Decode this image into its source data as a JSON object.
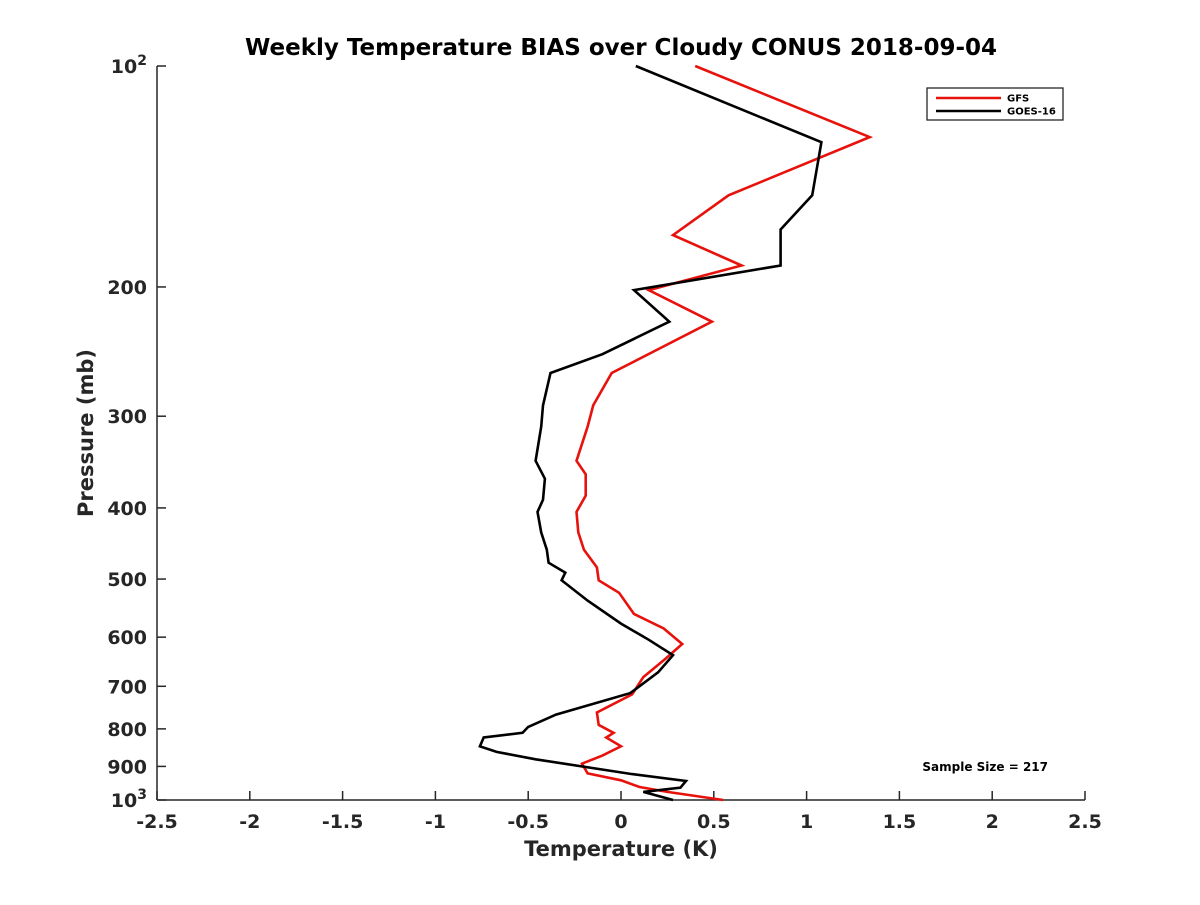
{
  "chart_data": {
    "type": "line",
    "title": "Weekly Temperature BIAS over Cloudy CONUS 2018-09-04",
    "xlabel": "Temperature (K)",
    "ylabel": "Pressure (mb)",
    "xlim": [
      -2.5,
      2.5
    ],
    "ylim": [
      100,
      1000
    ],
    "y_scale": "log",
    "y_reversed": true,
    "x_ticks": [
      -2.5,
      -2,
      -1.5,
      -1,
      -0.5,
      0,
      0.5,
      1,
      1.5,
      2,
      2.5
    ],
    "x_tick_labels": [
      "-2.5",
      "-2",
      "-1.5",
      "-1",
      "-0.5",
      "0",
      "0.5",
      "1",
      "1.5",
      "2",
      "2.5"
    ],
    "y_ticks": [
      100,
      200,
      300,
      400,
      500,
      600,
      700,
      800,
      900,
      1000
    ],
    "y_tick_labels": [
      {
        "base": "10",
        "exp": "2"
      },
      {
        "base": "200"
      },
      {
        "base": "300"
      },
      {
        "base": "400"
      },
      {
        "base": "500"
      },
      {
        "base": "600"
      },
      {
        "base": "700"
      },
      {
        "base": "800"
      },
      {
        "base": "900"
      },
      {
        "base": "10",
        "exp": "3"
      }
    ],
    "grid": false,
    "legend_position": "top-right",
    "annotation": "Sample Size = 217",
    "series": [
      {
        "name": "GFS",
        "color": "#e8120c",
        "points": [
          [
            0.4,
            100
          ],
          [
            1.34,
            125
          ],
          [
            0.58,
            150
          ],
          [
            0.28,
            170
          ],
          [
            0.65,
            187
          ],
          [
            0.15,
            202
          ],
          [
            0.49,
            223
          ],
          [
            -0.05,
            262
          ],
          [
            -0.15,
            290
          ],
          [
            -0.18,
            310
          ],
          [
            -0.24,
            345
          ],
          [
            -0.19,
            360
          ],
          [
            -0.19,
            385
          ],
          [
            -0.24,
            405
          ],
          [
            -0.23,
            432
          ],
          [
            -0.2,
            456
          ],
          [
            -0.13,
            482
          ],
          [
            -0.12,
            502
          ],
          [
            -0.01,
            522
          ],
          [
            0.07,
            558
          ],
          [
            0.23,
            584
          ],
          [
            0.33,
            613
          ],
          [
            0.24,
            642
          ],
          [
            0.12,
            680
          ],
          [
            0.06,
            718
          ],
          [
            -0.13,
            760
          ],
          [
            -0.12,
            790
          ],
          [
            -0.04,
            810
          ],
          [
            -0.08,
            822
          ],
          [
            0.0,
            845
          ],
          [
            -0.1,
            870
          ],
          [
            -0.21,
            892
          ],
          [
            -0.18,
            920
          ],
          [
            0.0,
            940
          ],
          [
            0.1,
            960
          ],
          [
            0.25,
            975
          ],
          [
            0.55,
            1000
          ]
        ]
      },
      {
        "name": "GOES-16",
        "color": "#000000",
        "points": [
          [
            0.08,
            100
          ],
          [
            1.08,
            127
          ],
          [
            1.03,
            150
          ],
          [
            0.86,
            167
          ],
          [
            0.86,
            187
          ],
          [
            0.07,
            202
          ],
          [
            0.26,
            223
          ],
          [
            -0.1,
            247
          ],
          [
            -0.38,
            262
          ],
          [
            -0.42,
            290
          ],
          [
            -0.43,
            310
          ],
          [
            -0.46,
            345
          ],
          [
            -0.41,
            365
          ],
          [
            -0.42,
            390
          ],
          [
            -0.45,
            405
          ],
          [
            -0.43,
            432
          ],
          [
            -0.4,
            456
          ],
          [
            -0.39,
            475
          ],
          [
            -0.3,
            490
          ],
          [
            -0.32,
            502
          ],
          [
            -0.18,
            535
          ],
          [
            0.0,
            575
          ],
          [
            0.15,
            605
          ],
          [
            0.28,
            635
          ],
          [
            0.2,
            670
          ],
          [
            0.05,
            715
          ],
          [
            -0.35,
            765
          ],
          [
            -0.5,
            795
          ],
          [
            -0.53,
            810
          ],
          [
            -0.74,
            822
          ],
          [
            -0.76,
            845
          ],
          [
            -0.67,
            860
          ],
          [
            -0.46,
            880
          ],
          [
            0.06,
            922
          ],
          [
            0.35,
            942
          ],
          [
            0.32,
            962
          ],
          [
            0.12,
            975
          ],
          [
            0.28,
            1000
          ]
        ]
      }
    ]
  }
}
